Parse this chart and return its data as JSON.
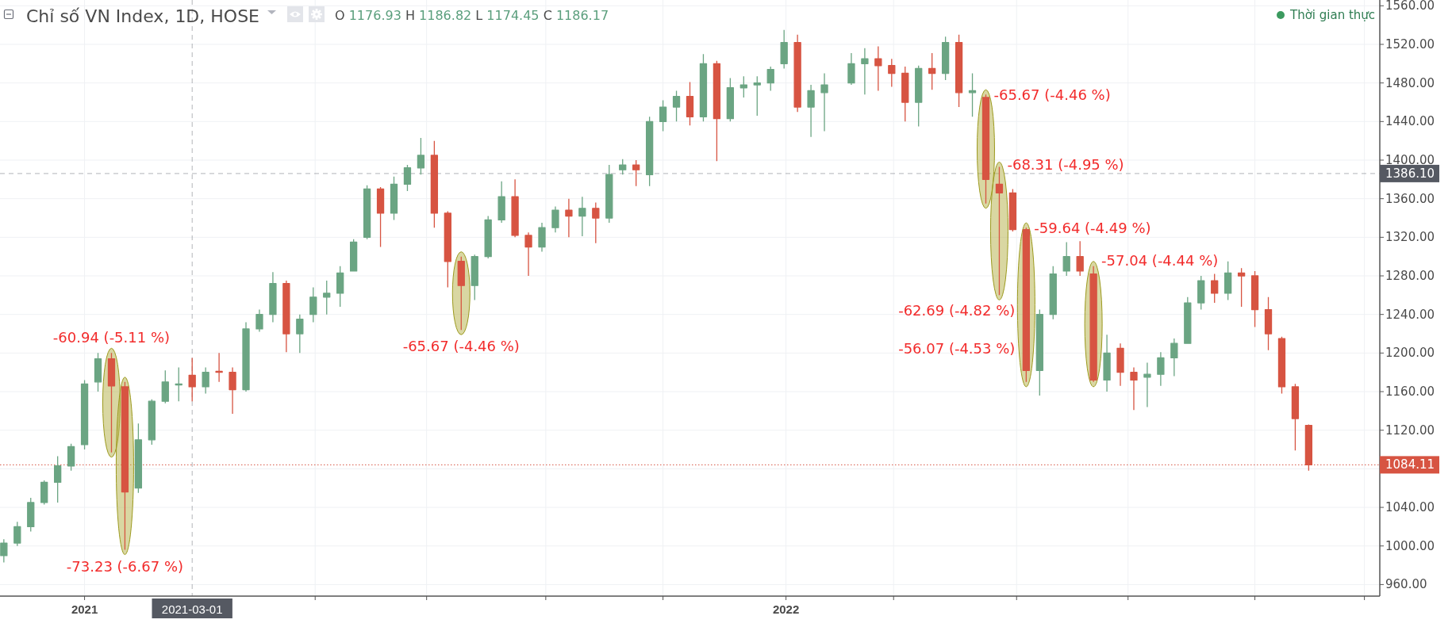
{
  "chart_data": {
    "type": "candlestick",
    "title": "Chỉ số VN Index, 1D, HOSE",
    "subtitle": "O 1176.93 H 1186.82 L 1174.45 C 1186.17",
    "x": [
      "2020-11-23",
      "2020-11-30",
      "2020-12-07",
      "2020-12-14",
      "2020-12-21",
      "2020-12-28",
      "2021-01-04",
      "2021-01-11",
      "2021-01-18",
      "2021-01-25",
      "2021-02-01",
      "2021-02-08",
      "2021-02-15",
      "2021-02-22",
      "2021-03-01",
      "2021-03-08",
      "2021-03-15",
      "2021-03-22",
      "2021-03-29",
      "2021-04-05",
      "2021-04-12",
      "2021-04-19",
      "2021-04-26",
      "2021-05-03",
      "2021-05-10",
      "2021-05-17",
      "2021-05-24",
      "2021-05-31",
      "2021-06-07",
      "2021-06-14",
      "2021-06-21",
      "2021-06-28",
      "2021-07-05",
      "2021-07-12",
      "2021-07-19",
      "2021-07-26",
      "2021-08-02",
      "2021-08-09",
      "2021-08-16",
      "2021-08-23",
      "2021-08-30",
      "2021-09-06",
      "2021-09-13",
      "2021-09-20",
      "2021-09-27",
      "2021-10-04",
      "2021-10-11",
      "2021-10-18",
      "2021-10-25",
      "2021-11-01",
      "2021-11-08",
      "2021-11-15",
      "2021-11-22",
      "2021-11-29",
      "2021-12-06",
      "2021-12-13",
      "2021-12-20",
      "2021-12-27",
      "2022-01-03",
      "2022-01-10",
      "2022-01-17",
      "2022-01-24",
      "2022-02-07",
      "2022-02-14",
      "2022-02-21",
      "2022-02-28",
      "2022-03-07",
      "2022-03-14",
      "2022-03-21",
      "2022-03-28",
      "2022-04-04",
      "2022-04-11",
      "2022-04-18",
      "2022-04-25",
      "2022-05-02",
      "2022-05-09",
      "2022-05-16",
      "2022-05-23",
      "2022-05-30",
      "2022-06-06",
      "2022-06-13",
      "2022-06-20",
      "2022-06-27",
      "2022-07-04",
      "2022-07-11",
      "2022-07-18",
      "2022-07-25",
      "2022-08-01",
      "2022-08-08",
      "2022-08-15",
      "2022-08-22",
      "2022-08-29",
      "2022-09-05",
      "2022-09-12",
      "2022-09-19",
      "2022-09-26",
      "2022-10-03"
    ],
    "ohlc": [
      [
        990,
        1007,
        983,
        1003
      ],
      [
        1003,
        1025,
        1000,
        1020
      ],
      [
        1020,
        1050,
        1015,
        1045
      ],
      [
        1045,
        1068,
        1043,
        1066
      ],
      [
        1066,
        1093,
        1045,
        1083
      ],
      [
        1083,
        1106,
        1078,
        1103
      ],
      [
        1105,
        1172,
        1100,
        1168
      ],
      [
        1170,
        1200,
        1160,
        1194
      ],
      [
        1194,
        1200,
        1097,
        1166
      ],
      [
        1165,
        1170,
        996,
        1056
      ],
      [
        1060,
        1127,
        1055,
        1110
      ],
      [
        1110,
        1152,
        1105,
        1150
      ],
      [
        1150,
        1182,
        1148,
        1170
      ],
      [
        1167,
        1185,
        1150,
        1168
      ],
      [
        1177,
        1195,
        1150,
        1165
      ],
      [
        1165,
        1185,
        1158,
        1180
      ],
      [
        1181,
        1200,
        1170,
        1180
      ],
      [
        1180,
        1185,
        1137,
        1162
      ],
      [
        1162,
        1232,
        1160,
        1225
      ],
      [
        1225,
        1245,
        1222,
        1240
      ],
      [
        1240,
        1284,
        1232,
        1272
      ],
      [
        1272,
        1275,
        1201,
        1220
      ],
      [
        1220,
        1240,
        1200,
        1235
      ],
      [
        1240,
        1268,
        1232,
        1258
      ],
      [
        1258,
        1275,
        1240,
        1262
      ],
      [
        1262,
        1290,
        1248,
        1283
      ],
      [
        1285,
        1318,
        1285,
        1315
      ],
      [
        1320,
        1374,
        1318,
        1370
      ],
      [
        1370,
        1372,
        1310,
        1345
      ],
      [
        1345,
        1383,
        1338,
        1375
      ],
      [
        1375,
        1395,
        1368,
        1392
      ],
      [
        1392,
        1423,
        1385,
        1405
      ],
      [
        1405,
        1420,
        1330,
        1345
      ],
      [
        1345,
        1347,
        1268,
        1295
      ],
      [
        1295,
        1300,
        1224,
        1270
      ],
      [
        1270,
        1302,
        1255,
        1300
      ],
      [
        1300,
        1342,
        1298,
        1338
      ],
      [
        1338,
        1378,
        1335,
        1362
      ],
      [
        1362,
        1380,
        1320,
        1322
      ],
      [
        1322,
        1325,
        1280,
        1310
      ],
      [
        1310,
        1335,
        1305,
        1330
      ],
      [
        1330,
        1352,
        1325,
        1348
      ],
      [
        1348,
        1360,
        1320,
        1342
      ],
      [
        1342,
        1362,
        1321,
        1350
      ],
      [
        1350,
        1356,
        1314,
        1340
      ],
      [
        1340,
        1395,
        1335,
        1385
      ],
      [
        1390,
        1401,
        1385,
        1395
      ],
      [
        1395,
        1400,
        1373,
        1390
      ],
      [
        1385,
        1445,
        1373,
        1440
      ],
      [
        1440,
        1462,
        1430,
        1455
      ],
      [
        1455,
        1472,
        1440,
        1466
      ],
      [
        1466,
        1481,
        1436,
        1445
      ],
      [
        1445,
        1510,
        1440,
        1500
      ],
      [
        1500,
        1503,
        1399,
        1443
      ],
      [
        1443,
        1485,
        1440,
        1475
      ],
      [
        1475,
        1487,
        1465,
        1478
      ],
      [
        1478,
        1487,
        1446,
        1480
      ],
      [
        1480,
        1497,
        1472,
        1494
      ],
      [
        1500,
        1535,
        1495,
        1522
      ],
      [
        1522,
        1530,
        1450,
        1455
      ],
      [
        1455,
        1478,
        1424,
        1472
      ],
      [
        1470,
        1490,
        1430,
        1478
      ],
      [
        1480,
        1511,
        1478,
        1500
      ],
      [
        1500,
        1516,
        1468,
        1505
      ],
      [
        1505,
        1518,
        1472,
        1498
      ],
      [
        1498,
        1505,
        1476,
        1490
      ],
      [
        1490,
        1497,
        1440,
        1460
      ],
      [
        1460,
        1498,
        1435,
        1495
      ],
      [
        1495,
        1511,
        1473,
        1490
      ],
      [
        1490,
        1528,
        1483,
        1522
      ],
      [
        1522,
        1530,
        1455,
        1470
      ],
      [
        1470,
        1490,
        1445,
        1472
      ],
      [
        1465,
        1468,
        1355,
        1380
      ],
      [
        1375,
        1393,
        1260,
        1366
      ],
      [
        1366,
        1370,
        1326,
        1328
      ],
      [
        1328,
        1330,
        1170,
        1182
      ],
      [
        1182,
        1245,
        1156,
        1240
      ],
      [
        1240,
        1290,
        1235,
        1282
      ],
      [
        1285,
        1315,
        1280,
        1300
      ],
      [
        1300,
        1316,
        1280,
        1285
      ],
      [
        1282,
        1290,
        1170,
        1172
      ],
      [
        1172,
        1219,
        1160,
        1200
      ],
      [
        1205,
        1210,
        1166,
        1180
      ],
      [
        1180,
        1185,
        1141,
        1172
      ],
      [
        1175,
        1190,
        1144,
        1178
      ],
      [
        1178,
        1201,
        1166,
        1195
      ],
      [
        1195,
        1215,
        1176,
        1210
      ],
      [
        1210,
        1258,
        1210,
        1252
      ],
      [
        1252,
        1280,
        1245,
        1275
      ],
      [
        1275,
        1282,
        1252,
        1262
      ],
      [
        1262,
        1295,
        1255,
        1283
      ],
      [
        1283,
        1288,
        1248,
        1280
      ],
      [
        1280,
        1285,
        1227,
        1245
      ],
      [
        1245,
        1258,
        1203,
        1220
      ],
      [
        1215,
        1217,
        1158,
        1165
      ],
      [
        1165,
        1168,
        1099,
        1132
      ],
      [
        1125,
        1126,
        1078,
        1084.11
      ]
    ],
    "colors": [
      "#6ba583",
      "#6ba583",
      "#6ba583",
      "#6ba583",
      "#6ba583",
      "#6ba583",
      "#6ba583",
      "#6ba583",
      "#d75442",
      "#d75442",
      "#6ba583",
      "#6ba583",
      "#6ba583",
      "#6ba583",
      "#d75442",
      "#6ba583",
      "#d75442",
      "#d75442",
      "#6ba583",
      "#6ba583",
      "#6ba583",
      "#d75442",
      "#6ba583",
      "#6ba583",
      "#6ba583",
      "#6ba583",
      "#6ba583",
      "#6ba583",
      "#d75442",
      "#6ba583",
      "#6ba583",
      "#6ba583",
      "#d75442",
      "#d75442",
      "#d75442",
      "#6ba583",
      "#6ba583",
      "#6ba583",
      "#d75442",
      "#d75442",
      "#6ba583",
      "#6ba583",
      "#d75442",
      "#6ba583",
      "#d75442",
      "#6ba583",
      "#6ba583",
      "#d75442",
      "#6ba583",
      "#6ba583",
      "#6ba583",
      "#d75442",
      "#6ba583",
      "#d75442",
      "#6ba583",
      "#6ba583",
      "#6ba583",
      "#6ba583",
      "#6ba583",
      "#d75442",
      "#6ba583",
      "#6ba583",
      "#6ba583",
      "#6ba583",
      "#d75442",
      "#d75442",
      "#d75442",
      "#6ba583",
      "#d75442",
      "#6ba583",
      "#d75442",
      "#6ba583",
      "#d75442",
      "#d75442",
      "#d75442",
      "#d75442",
      "#6ba583",
      "#6ba583",
      "#6ba583",
      "#d75442",
      "#d75442",
      "#6ba583",
      "#d75442",
      "#d75442",
      "#6ba583",
      "#6ba583",
      "#6ba583",
      "#6ba583",
      "#6ba583",
      "#d75442",
      "#6ba583",
      "#d75442",
      "#d75442",
      "#d75442",
      "#d75442",
      "#d75442",
      "#d75442"
    ],
    "xlim": [
      "2020-11-21",
      "2022-11-09"
    ],
    "xticks": [
      {
        "value": "2021-01-04",
        "label": "2021"
      },
      {
        "value": "2021-05-04",
        "label": null
      },
      {
        "value": "2021-07-01",
        "label": null
      },
      {
        "value": "2021-09-01",
        "label": null
      },
      {
        "value": "2021-11-01",
        "label": null
      },
      {
        "value": "2022-01-04",
        "label": "2022"
      },
      {
        "value": "2022-03-01",
        "label": null
      },
      {
        "value": "2022-05-04",
        "label": null
      },
      {
        "value": "2022-07-01",
        "label": null
      },
      {
        "value": "2022-09-05",
        "label": null
      },
      {
        "value": "2022-11-01",
        "label": null
      }
    ],
    "ylim": [
      948,
      1566
    ],
    "yticks": [
      {
        "value": 960,
        "label": "960.00"
      },
      {
        "value": 1000,
        "label": "1000.00"
      },
      {
        "value": 1040,
        "label": "1040.00"
      },
      {
        "value": 1080,
        "label": null
      },
      {
        "value": 1120,
        "label": "1120.00"
      },
      {
        "value": 1160,
        "label": "1160.00"
      },
      {
        "value": 1200,
        "label": "1200.00"
      },
      {
        "value": 1240,
        "label": "1240.00"
      },
      {
        "value": 1280,
        "label": "1280.00"
      },
      {
        "value": 1320,
        "label": "1320.00"
      },
      {
        "value": 1360,
        "label": "1360.00"
      },
      {
        "value": 1400,
        "label": "1400.00"
      },
      {
        "value": 1440,
        "label": "1440.00"
      },
      {
        "value": 1480,
        "label": "1480.00"
      },
      {
        "value": 1520,
        "label": "1520.00"
      },
      {
        "value": 1560,
        "label": "1560.00"
      }
    ],
    "grid": true,
    "ref_lines": [
      {
        "axis": "y",
        "value": 1084.11,
        "label": "1084.11",
        "color": "#d75442",
        "line_style": "dotted"
      },
      {
        "axis": "y",
        "value": 1386.1,
        "label": "1386.10",
        "color": "#555962",
        "line_style": "dashed"
      },
      {
        "axis": "x",
        "value": "2021-03-01",
        "label": "2021-03-01",
        "color": "#555962",
        "line_style": "dashed"
      }
    ],
    "annotations": [
      {
        "text": "-60.94 (-5.11 %)",
        "x": "2021-01-18",
        "y": 1200
      },
      {
        "text": "-73.23 (-6.67 %)",
        "x": "2021-01-25",
        "y": 996
      },
      {
        "text": "-65.67 (-4.46 %)",
        "x": "2021-07-19",
        "y": 1224
      },
      {
        "text": "-65.67 (-4.46 %)",
        "x": "2022-04-18",
        "y": 1468
      },
      {
        "text": "-68.31 (-4.95 %)",
        "x": "2022-04-25",
        "y": 1393
      },
      {
        "text": "-59.64 (-4.49 %)",
        "x": "2022-05-09",
        "y": 1330
      },
      {
        "text": "-62.69 (-4.82 %)",
        "x": "2022-05-09",
        "y": 1245
      },
      {
        "text": "-56.07 (-4.53 %)",
        "x": "2022-05-09",
        "y": 1205
      },
      {
        "text": "-57.04 (-4.44 %)",
        "x": "2022-06-13",
        "y": 1290
      },
      "Thời gian thực"
    ]
  }
}
